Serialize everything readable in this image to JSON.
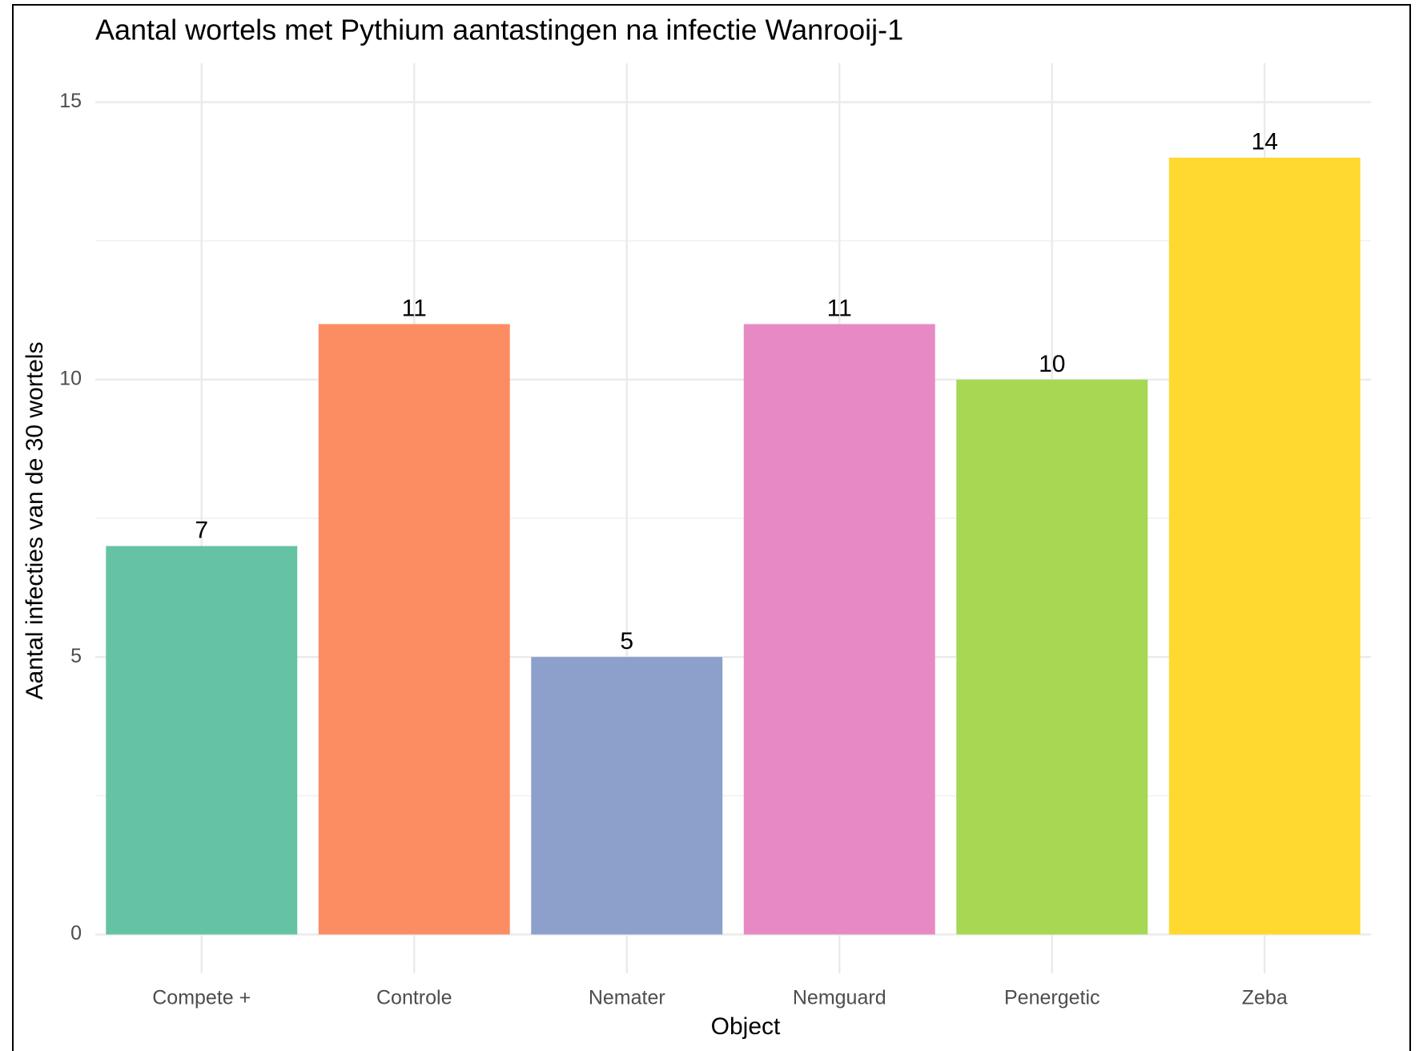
{
  "chart_data": {
    "type": "bar",
    "title": "Aantal wortels met Pythium aantastingen na infectie Wanrooij-1",
    "x_label": "Object",
    "y_label": "Aantal infecties van de 30 wortels",
    "categories": [
      "Compete +",
      "Controle",
      "Nemater",
      "Nemguard",
      "Penergetic",
      "Zeba"
    ],
    "values": [
      7,
      11,
      5,
      11,
      10,
      14
    ],
    "colors": [
      "#66c2a5",
      "#fc8d62",
      "#8da0cb",
      "#e78ac3",
      "#a6d854",
      "#ffd92f"
    ],
    "ylim": [
      -0.7,
      15.7
    ],
    "yticks": [
      0,
      5,
      10,
      15
    ],
    "minor_yticks": [
      2.5,
      7.5,
      12.5
    ],
    "grid": true
  }
}
